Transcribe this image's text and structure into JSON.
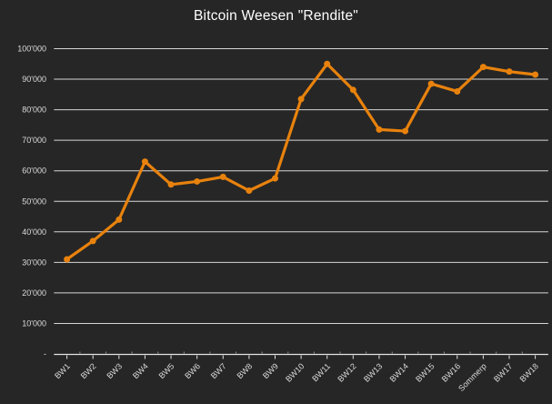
{
  "chart_data": {
    "type": "line",
    "title": "Bitcoin Weesen \"Rendite\"",
    "categories": [
      "BW1",
      "BW2",
      "BW3",
      "BW4",
      "BW5",
      "BW6",
      "BW7",
      "BW8",
      "BW9",
      "BW10",
      "BW11",
      "BW12",
      "BW13",
      "BW14",
      "BW15",
      "BW16",
      "Sommerp",
      "BW17",
      "BW18"
    ],
    "series": [
      {
        "name": "Rendite",
        "values": [
          31000,
          37000,
          44000,
          63000,
          55500,
          56500,
          58000,
          53500,
          57500,
          83500,
          95000,
          86500,
          73500,
          73000,
          88500,
          86000,
          94000,
          92500,
          91500
        ],
        "marker": "circle"
      }
    ],
    "xlabel": "",
    "ylabel": "",
    "ylim": [
      0,
      100000
    ],
    "y_ticks": [
      {
        "value": 0,
        "label": "-"
      },
      {
        "value": 10000,
        "label": "10'000"
      },
      {
        "value": 20000,
        "label": "20'000"
      },
      {
        "value": 30000,
        "label": "30'000"
      },
      {
        "value": 40000,
        "label": "40'000"
      },
      {
        "value": 50000,
        "label": "50'000"
      },
      {
        "value": 60000,
        "label": "60'000"
      },
      {
        "value": 70000,
        "label": "70'000"
      },
      {
        "value": 80000,
        "label": "80'000"
      },
      {
        "value": 90000,
        "label": "90'000"
      },
      {
        "value": 100000,
        "label": "100'000"
      }
    ],
    "grid": "horizontal",
    "legend": "none",
    "colors": {
      "background": "#262626",
      "line": "#E8820D",
      "marker": "#E8820D",
      "gridline": "#D6D6D6",
      "axis_line": "#E3E3E3",
      "minor_tick": "#8F8F8F",
      "tick_label": "#DCDCDC",
      "title": "#FFFFFF"
    }
  }
}
